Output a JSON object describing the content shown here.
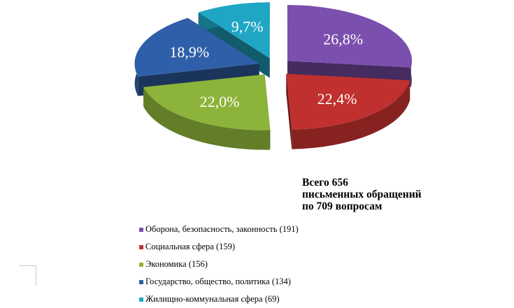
{
  "chart_data": {
    "type": "pie",
    "title": "",
    "total_lines": [
      "Всего 656",
      "письменных обращений",
      "по 709 вопросам"
    ],
    "categories": [
      "Оборона, безопасность, законность (191)",
      "Социальная сфера (159)",
      "Экономика (156)",
      "Государство, общество, политика (134)",
      "Жилищно-коммунальная сфера (69)"
    ],
    "values": [
      26.8,
      22.4,
      22.0,
      18.9,
      9.7
    ],
    "value_labels": [
      "26,8%",
      "22,4%",
      "22,0%",
      "18,9%",
      "9,7%"
    ],
    "colors": [
      "#7b4fae",
      "#c0302e",
      "#8cb43a",
      "#2f5fa8",
      "#1fa6c4"
    ],
    "legend_placement": "bottom-right"
  }
}
